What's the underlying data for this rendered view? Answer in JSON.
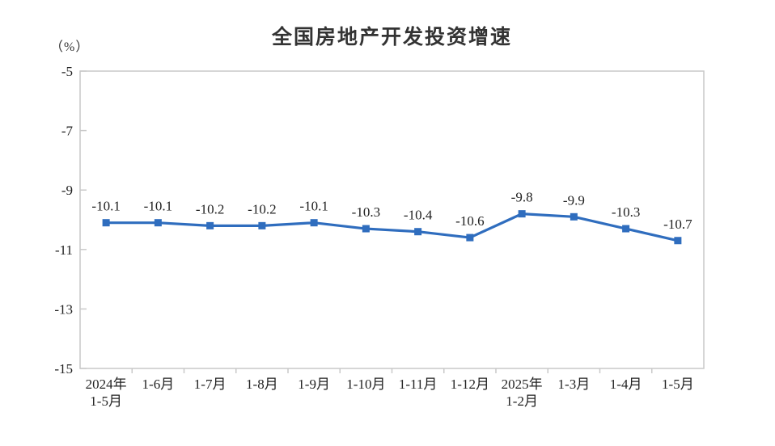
{
  "header": {
    "title": "全国房地产开发投资增速",
    "unit_label": "（%）"
  },
  "chart_data": {
    "type": "line",
    "title": "全国房地产开发投资增速",
    "unit": "（%）",
    "categories": [
      [
        "2024年",
        "1-5月"
      ],
      [
        "1-6月"
      ],
      [
        "1-7月"
      ],
      [
        "1-8月"
      ],
      [
        "1-9月"
      ],
      [
        "1-10月"
      ],
      [
        "1-11月"
      ],
      [
        "1-12月"
      ],
      [
        "2025年",
        "1-2月"
      ],
      [
        "1-3月"
      ],
      [
        "1-4月"
      ],
      [
        "1-5月"
      ]
    ],
    "values": [
      -10.1,
      -10.1,
      -10.2,
      -10.2,
      -10.1,
      -10.3,
      -10.4,
      -10.6,
      -9.8,
      -9.9,
      -10.3,
      -10.7
    ],
    "data_labels": [
      "-10.1",
      "-10.1",
      "-10.2",
      "-10.2",
      "-10.1",
      "-10.3",
      "-10.4",
      "-10.6",
      "-9.8",
      "-9.9",
      "-10.3",
      "-10.7"
    ],
    "y_ticks": [
      -5,
      -7,
      -9,
      -11,
      -13,
      -15
    ],
    "ylim": [
      -15,
      -5
    ],
    "xlabel": "",
    "ylabel": "（%）",
    "grid": false,
    "legend": "none",
    "line_color": "#2F6DBE",
    "axis_color": "#c9c9c9",
    "text_color": "#222222"
  }
}
